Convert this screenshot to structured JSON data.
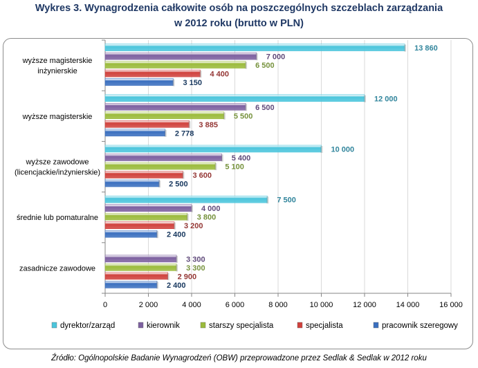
{
  "chart_data": {
    "type": "bar",
    "orientation": "horizontal",
    "title": "Wykres 3. Wynagrodzenia całkowite osób na poszczególnych szczeblach zarządzania",
    "subtitle": "w 2012 roku (brutto w PLN)",
    "categories": [
      [
        "wyższe magisterskie",
        "inżynierskie"
      ],
      [
        "wyższe magisterskie"
      ],
      [
        "wyższe zawodowe",
        "(licencjackie/inżynierskie)"
      ],
      [
        "średnie lub pomaturalne"
      ],
      [
        "zasadnicze zawodowe"
      ]
    ],
    "series": [
      {
        "name": "dyrektor/zarząd",
        "color": "#4bc5dc",
        "label_color": "#31859c",
        "values": [
          13860,
          12000,
          10000,
          7500,
          null
        ],
        "labels": [
          "13 860",
          "12 000",
          "10 000",
          "7 500",
          ""
        ]
      },
      {
        "name": "kierownik",
        "color": "#7d60a0",
        "label_color": "#5f497a",
        "values": [
          7000,
          6500,
          5400,
          4000,
          3300
        ],
        "labels": [
          "7 000",
          "6 500",
          "5 400",
          "4 000",
          "3 300"
        ]
      },
      {
        "name": "starszy specjalista",
        "color": "#9bbb3b",
        "label_color": "#76923c",
        "values": [
          6500,
          5500,
          5100,
          3800,
          3300
        ],
        "labels": [
          "6 500",
          "5 500",
          "5 100",
          "3 800",
          "3 300"
        ]
      },
      {
        "name": "specjalista",
        "color": "#d0413c",
        "label_color": "#943634",
        "values": [
          4400,
          3885,
          3600,
          3200,
          2900
        ],
        "labels": [
          "4 400",
          "3 885",
          "3 600",
          "3 200",
          "2 900"
        ]
      },
      {
        "name": "pracownik szeregowy",
        "color": "#3a6fbf",
        "label_color": "#17375e",
        "values": [
          3150,
          2778,
          2500,
          2400,
          2400
        ],
        "labels": [
          "3 150",
          "2 778",
          "2 500",
          "2 400",
          "2 400"
        ]
      }
    ],
    "xlim": [
      0,
      16000
    ],
    "xticks": [
      0,
      2000,
      4000,
      6000,
      8000,
      10000,
      12000,
      14000,
      16000
    ],
    "xtick_labels": [
      "0",
      "2 000",
      "4 000",
      "6 000",
      "8 000",
      "10 000",
      "12 000",
      "14 000",
      "16 000"
    ],
    "grid": "vertical",
    "legend_position": "bottom",
    "xlabel": "",
    "ylabel": ""
  },
  "source": "Źródło: Ogólnopolskie Badanie Wynagrodzeń (OBW) przeprowadzone przez Sedlak & Sedlak w 2012 roku"
}
